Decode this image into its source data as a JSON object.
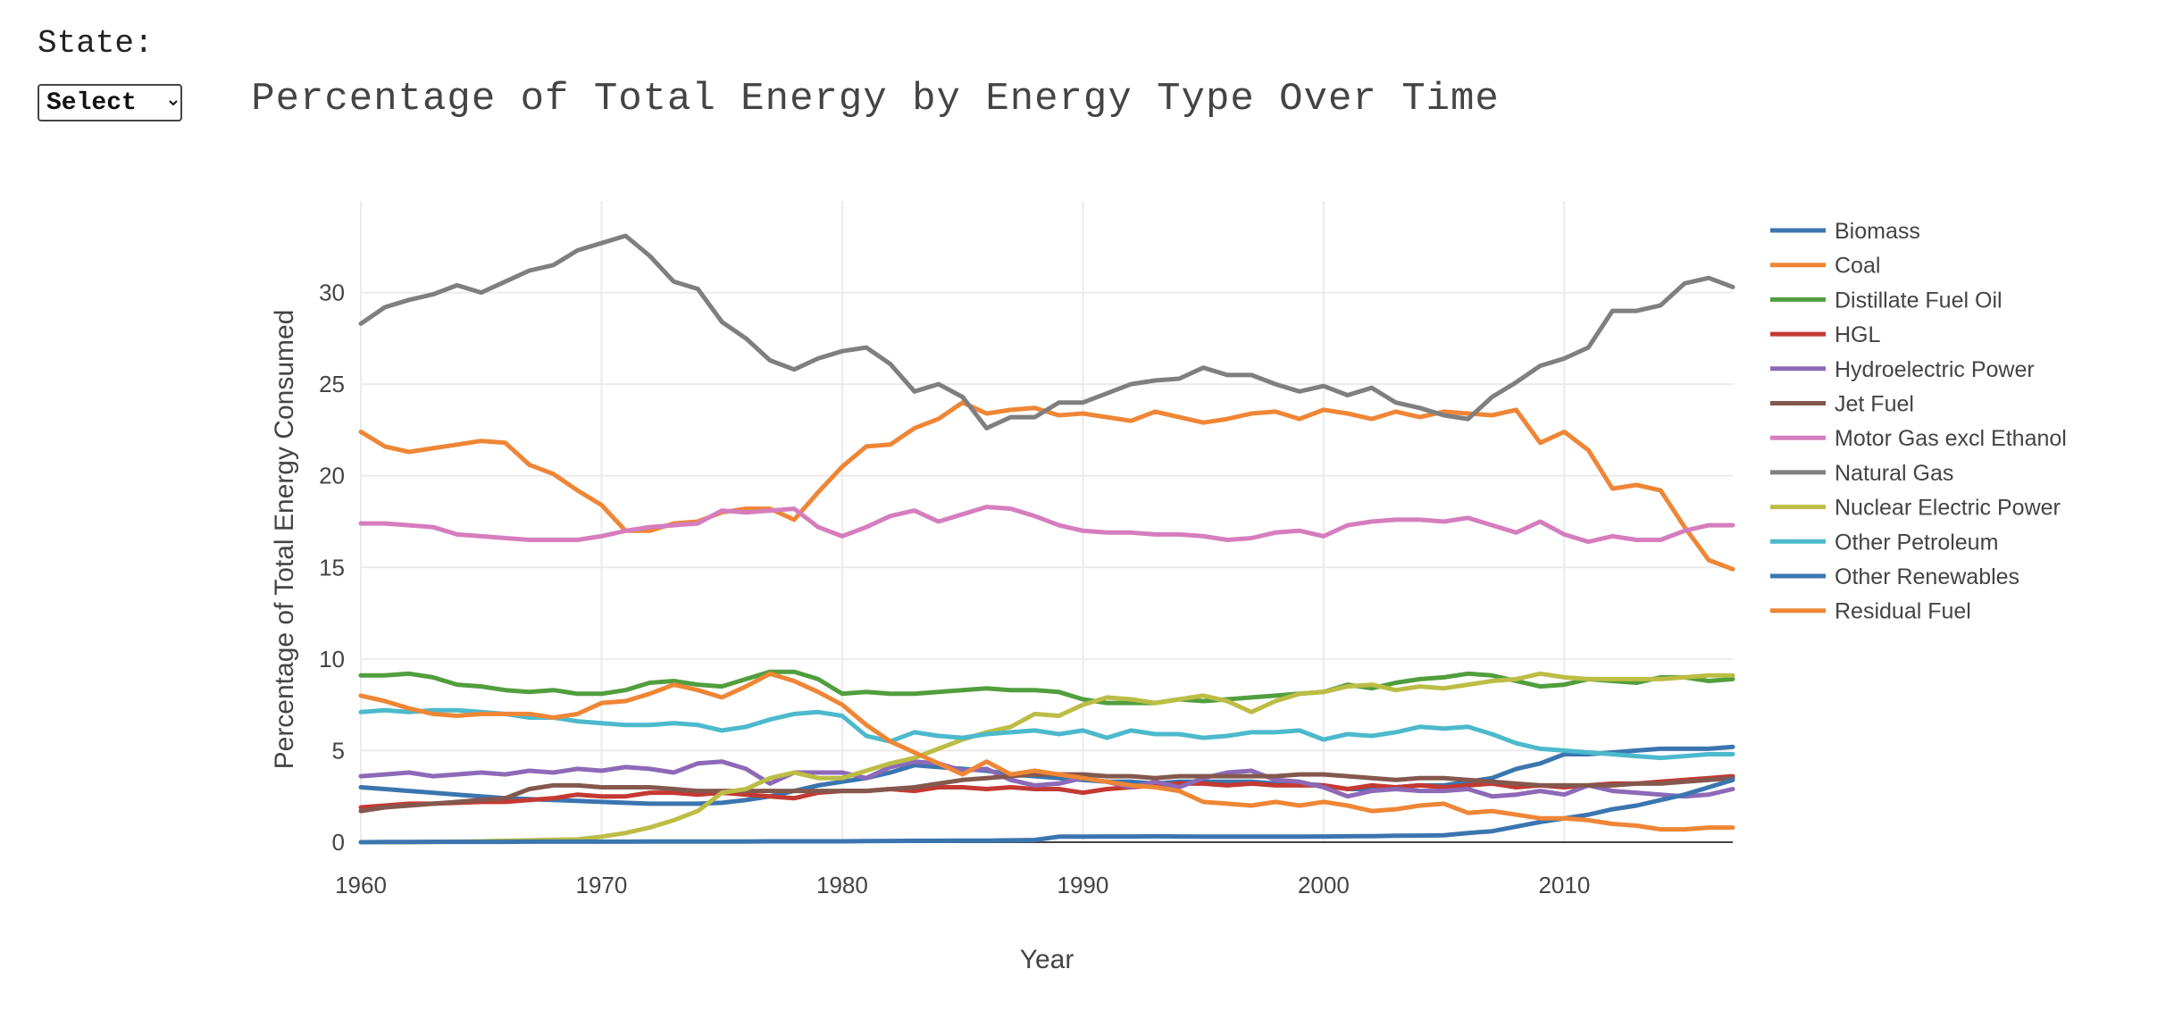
{
  "controls": {
    "state_label": "State:",
    "state_select_value": "Select",
    "state_select_options": [
      "Select"
    ]
  },
  "chart_data": {
    "type": "line",
    "title": "Percentage of Total Energy by Energy Type Over Time",
    "xlabel": "Year",
    "ylabel": "Percentage of Total Energy Consumed",
    "xlim": [
      1960,
      2017
    ],
    "ylim": [
      0,
      35
    ],
    "xticks": [
      1960,
      1970,
      1980,
      1990,
      2000,
      2010
    ],
    "yticks": [
      0,
      5,
      10,
      15,
      20,
      25,
      30
    ],
    "grid": true,
    "legend_position": "right",
    "x": [
      1960,
      1961,
      1962,
      1963,
      1964,
      1965,
      1966,
      1967,
      1968,
      1969,
      1970,
      1971,
      1972,
      1973,
      1974,
      1975,
      1976,
      1977,
      1978,
      1979,
      1980,
      1981,
      1982,
      1983,
      1984,
      1985,
      1986,
      1987,
      1988,
      1989,
      1990,
      1991,
      1992,
      1993,
      1994,
      1995,
      1996,
      1997,
      1998,
      1999,
      2000,
      2001,
      2002,
      2003,
      2004,
      2005,
      2006,
      2007,
      2008,
      2009,
      2010,
      2011,
      2012,
      2013,
      2014,
      2015,
      2016,
      2017
    ],
    "series": [
      {
        "name": "Biomass",
        "color": "#3b75af",
        "values": [
          3.0,
          2.9,
          2.8,
          2.7,
          2.6,
          2.5,
          2.4,
          2.35,
          2.3,
          2.25,
          2.2,
          2.15,
          2.1,
          2.1,
          2.1,
          2.15,
          2.3,
          2.5,
          2.8,
          3.1,
          3.3,
          3.5,
          3.8,
          4.2,
          4.1,
          4.0,
          3.9,
          3.7,
          3.6,
          3.5,
          3.4,
          3.3,
          3.3,
          3.2,
          3.3,
          3.3,
          3.3,
          3.3,
          3.2,
          3.2,
          3.1,
          2.9,
          2.9,
          3.0,
          3.1,
          3.1,
          3.3,
          3.5,
          4.0,
          4.3,
          4.8,
          4.8,
          4.9,
          5.0,
          5.1,
          5.1,
          5.1,
          5.2
        ]
      },
      {
        "name": "Coal",
        "color": "#ef8636",
        "values": [
          22.4,
          21.6,
          21.3,
          21.5,
          21.7,
          21.9,
          21.8,
          20.6,
          20.1,
          19.2,
          18.4,
          17.0,
          17.0,
          17.4,
          17.5,
          18.0,
          18.2,
          18.2,
          17.6,
          19.1,
          20.5,
          21.6,
          21.7,
          22.6,
          23.1,
          24.0,
          23.4,
          23.6,
          23.7,
          23.3,
          23.4,
          23.2,
          23.0,
          23.5,
          23.2,
          22.9,
          23.1,
          23.4,
          23.5,
          23.1,
          23.6,
          23.4,
          23.1,
          23.5,
          23.2,
          23.5,
          23.4,
          23.3,
          23.6,
          21.8,
          22.4,
          21.4,
          19.3,
          19.5,
          19.2,
          17.2,
          15.4,
          14.9
        ]
      },
      {
        "name": "Distillate Fuel Oil",
        "color": "#519e3e",
        "values": [
          9.1,
          9.1,
          9.2,
          9.0,
          8.6,
          8.5,
          8.3,
          8.2,
          8.3,
          8.1,
          8.1,
          8.3,
          8.7,
          8.8,
          8.6,
          8.5,
          8.9,
          9.3,
          9.3,
          8.9,
          8.1,
          8.2,
          8.1,
          8.1,
          8.2,
          8.3,
          8.4,
          8.3,
          8.3,
          8.2,
          7.8,
          7.6,
          7.6,
          7.6,
          7.8,
          7.7,
          7.8,
          7.9,
          8.0,
          8.1,
          8.2,
          8.6,
          8.4,
          8.7,
          8.9,
          9.0,
          9.2,
          9.1,
          8.8,
          8.5,
          8.6,
          8.9,
          8.8,
          8.7,
          9.0,
          9.0,
          8.8,
          8.9
        ]
      },
      {
        "name": "HGL",
        "color": "#c43932",
        "values": [
          1.9,
          2.0,
          2.1,
          2.1,
          2.15,
          2.2,
          2.2,
          2.3,
          2.4,
          2.6,
          2.5,
          2.5,
          2.7,
          2.7,
          2.6,
          2.7,
          2.6,
          2.5,
          2.4,
          2.7,
          2.8,
          2.8,
          2.9,
          2.8,
          3.0,
          3.0,
          2.9,
          3.0,
          2.9,
          2.9,
          2.7,
          2.9,
          3.0,
          3.1,
          3.2,
          3.2,
          3.1,
          3.2,
          3.1,
          3.1,
          3.1,
          2.9,
          3.1,
          3.0,
          3.1,
          3.0,
          3.1,
          3.2,
          3.0,
          3.1,
          3.0,
          3.1,
          3.2,
          3.2,
          3.3,
          3.4,
          3.5,
          3.6
        ]
      },
      {
        "name": "Hydroelectric Power",
        "color": "#8d69b8",
        "values": [
          3.6,
          3.7,
          3.8,
          3.6,
          3.7,
          3.8,
          3.7,
          3.9,
          3.8,
          4.0,
          3.9,
          4.1,
          4.0,
          3.8,
          4.3,
          4.4,
          4.0,
          3.2,
          3.8,
          3.8,
          3.8,
          3.5,
          4.1,
          4.4,
          4.3,
          3.9,
          4.0,
          3.4,
          3.1,
          3.2,
          3.5,
          3.3,
          3.0,
          3.3,
          3.0,
          3.5,
          3.8,
          3.9,
          3.4,
          3.3,
          3.0,
          2.5,
          2.8,
          2.9,
          2.8,
          2.8,
          2.9,
          2.5,
          2.6,
          2.8,
          2.6,
          3.1,
          2.8,
          2.7,
          2.6,
          2.5,
          2.6,
          2.9
        ]
      },
      {
        "name": "Jet Fuel",
        "color": "#84584e",
        "values": [
          1.7,
          1.9,
          2.0,
          2.1,
          2.2,
          2.3,
          2.4,
          2.9,
          3.1,
          3.1,
          3.0,
          3.0,
          3.0,
          2.9,
          2.8,
          2.8,
          2.8,
          2.8,
          2.8,
          2.8,
          2.8,
          2.8,
          2.9,
          3.0,
          3.2,
          3.4,
          3.5,
          3.6,
          3.7,
          3.7,
          3.7,
          3.6,
          3.6,
          3.5,
          3.6,
          3.6,
          3.6,
          3.6,
          3.6,
          3.7,
          3.7,
          3.6,
          3.5,
          3.4,
          3.5,
          3.5,
          3.4,
          3.3,
          3.2,
          3.1,
          3.1,
          3.1,
          3.1,
          3.2,
          3.2,
          3.3,
          3.4,
          3.5
        ]
      },
      {
        "name": "Motor Gas excl Ethanol",
        "color": "#d57dbe",
        "values": [
          17.4,
          17.4,
          17.3,
          17.2,
          16.8,
          16.7,
          16.6,
          16.5,
          16.5,
          16.5,
          16.7,
          17.0,
          17.2,
          17.3,
          17.4,
          18.1,
          18.0,
          18.1,
          18.2,
          17.2,
          16.7,
          17.2,
          17.8,
          18.1,
          17.5,
          17.9,
          18.3,
          18.2,
          17.8,
          17.3,
          17.0,
          16.9,
          16.9,
          16.8,
          16.8,
          16.7,
          16.5,
          16.6,
          16.9,
          17.0,
          16.7,
          17.3,
          17.5,
          17.6,
          17.6,
          17.5,
          17.7,
          17.3,
          16.9,
          17.5,
          16.8,
          16.4,
          16.7,
          16.5,
          16.5,
          17.0,
          17.3,
          17.3
        ]
      },
      {
        "name": "Natural Gas",
        "color": "#7f7f7f",
        "values": [
          28.3,
          29.2,
          29.6,
          29.9,
          30.4,
          30.0,
          30.6,
          31.2,
          31.5,
          32.3,
          32.7,
          33.1,
          32.0,
          30.6,
          30.2,
          28.4,
          27.5,
          26.3,
          25.8,
          26.4,
          26.8,
          27.0,
          26.1,
          24.6,
          25.0,
          24.3,
          22.6,
          23.2,
          23.2,
          24.0,
          24.0,
          24.5,
          25.0,
          25.2,
          25.3,
          25.9,
          25.5,
          25.5,
          25.0,
          24.6,
          24.9,
          24.4,
          24.8,
          24.0,
          23.7,
          23.3,
          23.1,
          24.3,
          25.1,
          26.0,
          26.4,
          27.0,
          29.0,
          29.0,
          29.3,
          30.5,
          30.8,
          30.3
        ]
      },
      {
        "name": "Nuclear Electric Power",
        "color": "#bcbd45",
        "values": [
          0.0,
          0.0,
          0.0,
          0.02,
          0.03,
          0.05,
          0.08,
          0.1,
          0.13,
          0.15,
          0.3,
          0.5,
          0.8,
          1.2,
          1.7,
          2.7,
          2.9,
          3.5,
          3.8,
          3.5,
          3.5,
          3.9,
          4.3,
          4.6,
          5.1,
          5.6,
          6.0,
          6.3,
          7.0,
          6.9,
          7.5,
          7.9,
          7.8,
          7.6,
          7.8,
          8.0,
          7.7,
          7.1,
          7.7,
          8.1,
          8.2,
          8.5,
          8.6,
          8.3,
          8.5,
          8.4,
          8.6,
          8.8,
          8.9,
          9.2,
          9.0,
          8.9,
          8.9,
          8.9,
          8.9,
          9.0,
          9.1,
          9.1
        ]
      },
      {
        "name": "Other Petroleum",
        "color": "#4cb9cc",
        "values": [
          7.1,
          7.2,
          7.1,
          7.2,
          7.2,
          7.1,
          7.0,
          6.8,
          6.8,
          6.6,
          6.5,
          6.4,
          6.4,
          6.5,
          6.4,
          6.1,
          6.3,
          6.7,
          7.0,
          7.1,
          6.9,
          5.8,
          5.5,
          6.0,
          5.8,
          5.7,
          5.9,
          6.0,
          6.1,
          5.9,
          6.1,
          5.7,
          6.1,
          5.9,
          5.9,
          5.7,
          5.8,
          6.0,
          6.0,
          6.1,
          5.6,
          5.9,
          5.8,
          6.0,
          6.3,
          6.2,
          6.3,
          5.9,
          5.4,
          5.1,
          5.0,
          4.9,
          4.8,
          4.7,
          4.6,
          4.7,
          4.8,
          4.8
        ]
      },
      {
        "name": "Other Renewables",
        "color": "#3b75af",
        "values": [
          0.0,
          0.01,
          0.01,
          0.02,
          0.02,
          0.02,
          0.02,
          0.03,
          0.03,
          0.03,
          0.03,
          0.03,
          0.04,
          0.04,
          0.04,
          0.04,
          0.04,
          0.05,
          0.05,
          0.05,
          0.05,
          0.06,
          0.07,
          0.08,
          0.08,
          0.09,
          0.09,
          0.1,
          0.12,
          0.3,
          0.3,
          0.31,
          0.31,
          0.32,
          0.31,
          0.3,
          0.3,
          0.3,
          0.3,
          0.3,
          0.31,
          0.32,
          0.33,
          0.35,
          0.36,
          0.38,
          0.5,
          0.6,
          0.85,
          1.1,
          1.3,
          1.5,
          1.8,
          2.0,
          2.3,
          2.6,
          3.0,
          3.4
        ]
      },
      {
        "name": "Residual Fuel",
        "color": "#ef8636",
        "values": [
          8.0,
          7.7,
          7.3,
          7.0,
          6.9,
          7.0,
          7.0,
          7.0,
          6.8,
          7.0,
          7.6,
          7.7,
          8.1,
          8.6,
          8.3,
          7.9,
          8.5,
          9.2,
          8.8,
          8.2,
          7.5,
          6.4,
          5.5,
          4.9,
          4.3,
          3.7,
          4.4,
          3.7,
          3.9,
          3.7,
          3.5,
          3.3,
          3.1,
          3.0,
          2.8,
          2.2,
          2.1,
          2.0,
          2.2,
          2.0,
          2.2,
          2.0,
          1.7,
          1.8,
          2.0,
          2.1,
          1.6,
          1.7,
          1.5,
          1.3,
          1.3,
          1.2,
          1.0,
          0.9,
          0.7,
          0.7,
          0.8,
          0.8
        ]
      }
    ]
  }
}
